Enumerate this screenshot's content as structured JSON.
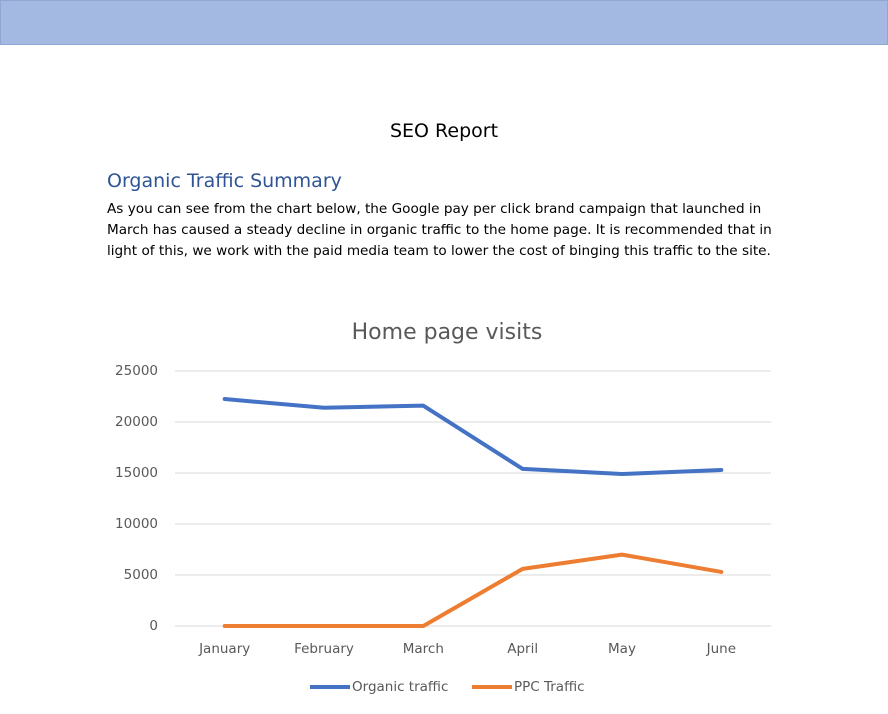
{
  "document": {
    "title": "SEO Report",
    "heading": "Organic Traffic Summary",
    "paragraph": "As you can see from the chart below, the Google pay per click brand campaign that launched in March has caused a steady decline in organic traffic to the home page. It is recommended that in light of this, we work with the paid media team to lower the cost of binging this traffic to the site."
  },
  "chart_data": {
    "type": "line",
    "title": "Home page visits",
    "categories": [
      "January",
      "February",
      "March",
      "April",
      "May",
      "June"
    ],
    "series": [
      {
        "name": "Organic traffic",
        "color": "#4472c4",
        "values": [
          22250,
          21400,
          21600,
          15400,
          14900,
          15300
        ]
      },
      {
        "name": "PPC Traffic",
        "color": "#ed7d31",
        "values": [
          0,
          0,
          0,
          5600,
          7000,
          5300
        ]
      }
    ],
    "ylim": [
      0,
      25000
    ],
    "yticks": [
      0,
      5000,
      10000,
      15000,
      20000,
      25000
    ],
    "grid": true,
    "legend": "bottom"
  }
}
